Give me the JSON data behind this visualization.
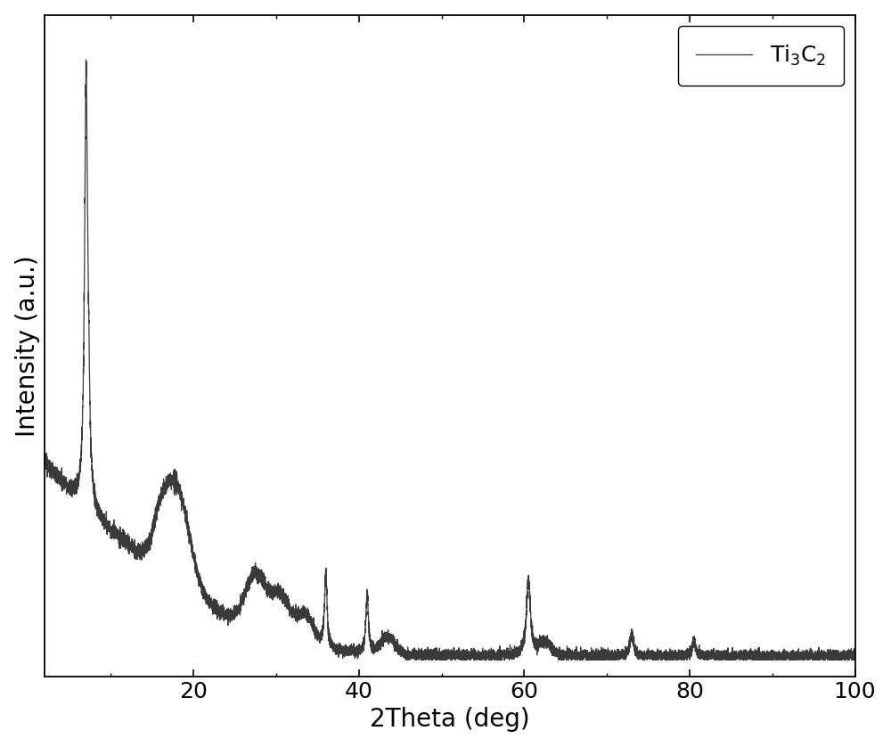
{
  "xlabel": "2Theta (deg)",
  "ylabel": "Intensity (a.u.)",
  "legend_label": "Ti$_3$C$_2$",
  "line_color": "#3a3a3a",
  "line_width": 0.9,
  "xlim": [
    2,
    100
  ],
  "xticks": [
    20,
    40,
    60,
    80,
    100
  ],
  "background_color": "#ffffff",
  "xlabel_fontsize": 20,
  "ylabel_fontsize": 20,
  "tick_fontsize": 18,
  "legend_fontsize": 18,
  "seed": 42
}
